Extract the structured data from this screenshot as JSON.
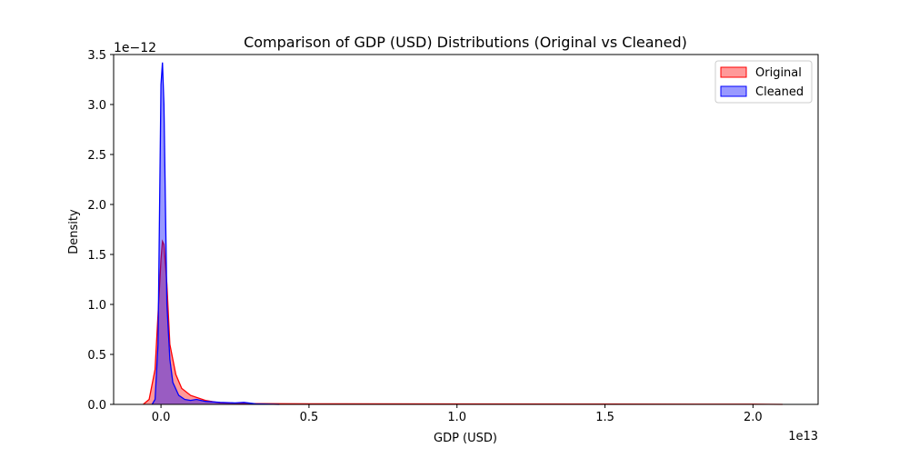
{
  "chart_data": {
    "type": "area",
    "title": "Comparison of GDP (USD) Distributions (Original vs Cleaned)",
    "xlabel": "GDP (USD)",
    "ylabel": "Density",
    "x_offset_label": "1e13",
    "y_offset_label": "1e−12",
    "x_unit_scale": 10000000000000.0,
    "y_unit_scale": 1e-12,
    "xlim": [
      -0.16,
      2.22
    ],
    "ylim": [
      0,
      3.5
    ],
    "x_ticks": [
      0.0,
      0.5,
      1.0,
      1.5,
      2.0
    ],
    "x_tick_labels": [
      "0.0",
      "0.5",
      "1.0",
      "1.5",
      "2.0"
    ],
    "y_ticks": [
      0.0,
      0.5,
      1.0,
      1.5,
      2.0,
      2.5,
      3.0,
      3.5
    ],
    "y_tick_labels": [
      "0.0",
      "0.5",
      "1.0",
      "1.5",
      "2.0",
      "2.5",
      "3.0",
      "3.5"
    ],
    "grid": false,
    "legend_position": "top-right",
    "series": [
      {
        "name": "Original",
        "color": "#ff0000",
        "fill_opacity": 0.4,
        "x": [
          -0.06,
          -0.04,
          -0.02,
          -0.01,
          0.0,
          0.005,
          0.01,
          0.02,
          0.03,
          0.05,
          0.07,
          0.1,
          0.15,
          0.2,
          0.3,
          0.5,
          1.0,
          1.5,
          2.0,
          2.1
        ],
        "y": [
          0.0,
          0.05,
          0.35,
          0.9,
          1.45,
          1.63,
          1.6,
          1.2,
          0.6,
          0.3,
          0.16,
          0.09,
          0.04,
          0.015,
          0.008,
          0.006,
          0.004,
          0.003,
          0.002,
          0.0
        ]
      },
      {
        "name": "Cleaned",
        "color": "#0000ff",
        "fill_opacity": 0.4,
        "x": [
          -0.03,
          -0.02,
          -0.01,
          -0.005,
          0.0,
          0.005,
          0.01,
          0.015,
          0.02,
          0.03,
          0.04,
          0.06,
          0.08,
          0.1,
          0.12,
          0.15,
          0.2,
          0.25,
          0.28,
          0.32,
          0.4
        ],
        "y": [
          0.0,
          0.05,
          0.6,
          1.9,
          3.2,
          3.42,
          3.0,
          2.0,
          1.0,
          0.45,
          0.22,
          0.09,
          0.05,
          0.04,
          0.05,
          0.03,
          0.02,
          0.015,
          0.02,
          0.005,
          0.0
        ]
      }
    ]
  }
}
